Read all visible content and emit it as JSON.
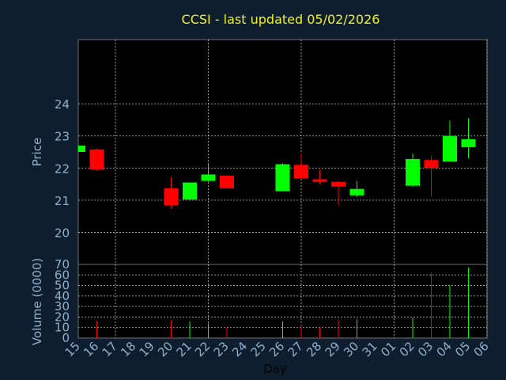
{
  "chart_data": {
    "type": "candlestick",
    "title": "CCSI - last updated 05/02/2026",
    "xlabel": "Day",
    "price_panel": {
      "ylabel": "Price",
      "y_ticks": [
        "20",
        "21",
        "22",
        "23",
        "24"
      ],
      "ylim": [
        19,
        26
      ],
      "grid": true
    },
    "volume_panel": {
      "ylabel": "Volume (0000)",
      "y_ticks": [
        "0",
        "10",
        "20",
        "30",
        "40",
        "50",
        "60",
        "70"
      ],
      "ylim": [
        0,
        70
      ],
      "grid": true
    },
    "x_ticks": [
      "15",
      "16",
      "17",
      "18",
      "19",
      "20",
      "21",
      "22",
      "23",
      "24",
      "25",
      "26",
      "27",
      "28",
      "29",
      "30",
      "31",
      "01",
      "02",
      "03",
      "04",
      "05",
      "06"
    ],
    "candles": [
      {
        "day": "15",
        "open": 22.5,
        "high": 22.7,
        "low": 22.5,
        "close": 22.7,
        "volume": 0
      },
      {
        "day": "16",
        "open": 22.58,
        "high": 22.6,
        "low": 21.92,
        "close": 21.95,
        "volume": 16
      },
      {
        "day": "20",
        "open": 21.37,
        "high": 21.72,
        "low": 20.75,
        "close": 20.84,
        "volume": 17
      },
      {
        "day": "21",
        "open": 21.02,
        "high": 21.55,
        "low": 21.0,
        "close": 21.55,
        "volume": 16
      },
      {
        "day": "22",
        "open": 21.6,
        "high": 22.12,
        "low": 21.58,
        "close": 21.8,
        "volume": 14
      },
      {
        "day": "23",
        "open": 21.76,
        "high": 21.78,
        "low": 21.36,
        "close": 21.37,
        "volume": 11
      },
      {
        "day": "26",
        "open": 21.28,
        "high": 22.15,
        "low": 21.28,
        "close": 22.12,
        "volume": 16
      },
      {
        "day": "27",
        "open": 22.1,
        "high": 22.45,
        "low": 21.68,
        "close": 21.68,
        "volume": 12
      },
      {
        "day": "28",
        "open": 21.65,
        "high": 21.95,
        "low": 21.5,
        "close": 21.57,
        "volume": 10
      },
      {
        "day": "29",
        "open": 21.57,
        "high": 21.6,
        "low": 20.85,
        "close": 21.42,
        "volume": 18
      },
      {
        "day": "30",
        "open": 21.15,
        "high": 21.6,
        "low": 21.1,
        "close": 21.35,
        "volume": 18
      },
      {
        "day": "02",
        "open": 21.45,
        "high": 22.45,
        "low": 21.42,
        "close": 22.28,
        "volume": 19
      },
      {
        "day": "03",
        "open": 22.25,
        "high": 22.38,
        "low": 21.12,
        "close": 22.0,
        "volume": 62
      },
      {
        "day": "04",
        "open": 22.2,
        "high": 23.48,
        "low": 22.2,
        "close": 23.0,
        "volume": 50
      },
      {
        "day": "05",
        "open": 22.65,
        "high": 23.55,
        "low": 22.3,
        "close": 22.9,
        "volume": 67
      }
    ],
    "colors": {
      "up": "#00ff00",
      "down": "#ff0000",
      "background": "#0f1e2e",
      "plot_background": "#000000",
      "grid": "#e8e8e8",
      "title": "#f0f020",
      "axis_text": "#8fb0cc"
    }
  }
}
